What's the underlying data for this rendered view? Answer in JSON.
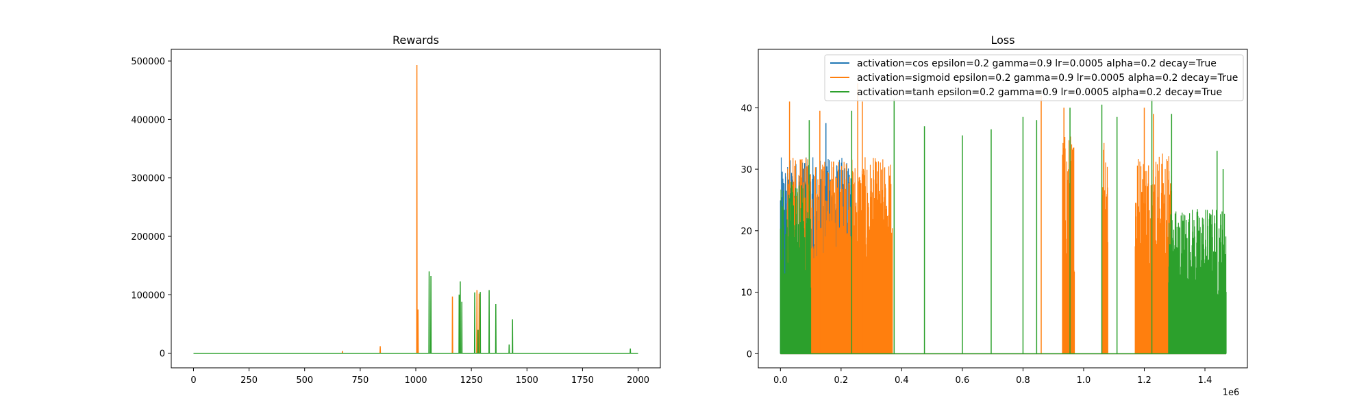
{
  "chart_data": [
    {
      "type": "line",
      "title": "Rewards",
      "xlabel": "",
      "ylabel": "",
      "xlim": [
        -100,
        2100
      ],
      "ylim": [
        -25000,
        520000
      ],
      "xticks": [
        0,
        250,
        500,
        750,
        1000,
        1250,
        1500,
        1750,
        2000
      ],
      "xtick_labels": [
        "0",
        "250",
        "500",
        "750",
        "1000",
        "1250",
        "1500",
        "1750",
        "2000"
      ],
      "yticks": [
        0,
        100000,
        200000,
        300000,
        400000,
        500000
      ],
      "ytick_labels": [
        "0",
        "100000",
        "200000",
        "300000",
        "400000",
        "500000"
      ],
      "grid": false,
      "series": [
        {
          "color": "#1f77b4",
          "baseline_x_range": [
            0,
            2000
          ],
          "baseline": 0,
          "spikes": []
        },
        {
          "color": "#ff7f0e",
          "baseline_x_range": [
            0,
            2000
          ],
          "baseline": 0,
          "spikes": [
            [
              670,
              4000
            ],
            [
              840,
              12000
            ],
            [
              1005,
              493000
            ],
            [
              1010,
              75000
            ],
            [
              1165,
              97000
            ],
            [
              1275,
              108000
            ],
            [
              1285,
              102000
            ]
          ]
        },
        {
          "color": "#2ca02c",
          "baseline_x_range": [
            0,
            2000
          ],
          "baseline": 0,
          "spikes": [
            [
              1060,
              140000
            ],
            [
              1068,
              132000
            ],
            [
              1195,
              100000
            ],
            [
              1200,
              123000
            ],
            [
              1207,
              88000
            ],
            [
              1265,
              104000
            ],
            [
              1280,
              40000
            ],
            [
              1290,
              105000
            ],
            [
              1330,
              108000
            ],
            [
              1360,
              84000
            ],
            [
              1420,
              15000
            ],
            [
              1435,
              58000
            ],
            [
              1965,
              8000
            ]
          ]
        }
      ]
    },
    {
      "type": "line",
      "title": "Loss",
      "xlabel": "",
      "ylabel": "",
      "x_offset_label": "1e6",
      "xlim": [
        -0.073,
        1.54
      ],
      "ylim": [
        -2.3,
        49.5
      ],
      "xticks": [
        0.0,
        0.2,
        0.4,
        0.6,
        0.8,
        1.0,
        1.2,
        1.4
      ],
      "xtick_labels": [
        "0.0",
        "0.2",
        "0.4",
        "0.6",
        "0.8",
        "1.0",
        "1.2",
        "1.4"
      ],
      "yticks": [
        0,
        10,
        20,
        30,
        40
      ],
      "ytick_labels": [
        "0",
        "10",
        "20",
        "30",
        "40"
      ],
      "grid": false,
      "legend": "top-right",
      "series": [
        {
          "name": "activation=cos epsilon=0.2 gamma=0.9 lr=0.0005 alpha=0.2 decay=True",
          "color": "#1f77b4",
          "blocks": [
            [
              0.0,
              0.24,
              0.5,
              32
            ]
          ],
          "spikes": [
            [
              0.002,
              19.5
            ],
            [
              0.08,
              31
            ],
            [
              0.15,
              37.5
            ],
            [
              0.2,
              25
            ],
            [
              0.21,
              21
            ]
          ]
        },
        {
          "name": "activation=sigmoid epsilon=0.2 gamma=0.9 lr=0.0005 alpha=0.2 decay=True",
          "color": "#ff7f0e",
          "blocks": [
            [
              0.02,
              0.37,
              1,
              32
            ],
            [
              0.93,
              0.97,
              1,
              36
            ],
            [
              1.06,
              1.08,
              1,
              38
            ],
            [
              1.17,
              1.29,
              1,
              33
            ]
          ],
          "spikes": [
            [
              0.03,
              41
            ],
            [
              0.13,
              39.5
            ],
            [
              0.255,
              44
            ],
            [
              0.27,
              41
            ],
            [
              0.86,
              42
            ],
            [
              0.935,
              40
            ],
            [
              1.2,
              40
            ],
            [
              1.23,
              39
            ]
          ]
        },
        {
          "name": "activation=tanh epsilon=0.2 gamma=0.9 lr=0.0005 alpha=0.2 decay=True",
          "color": "#2ca02c",
          "blocks": [
            [
              0.0,
              0.1,
              0,
              28
            ],
            [
              1.28,
              1.47,
              0,
              24
            ]
          ],
          "spikes": [
            [
              0.095,
              38
            ],
            [
              0.235,
              39.5
            ],
            [
              0.375,
              41.5
            ],
            [
              0.475,
              37
            ],
            [
              0.6,
              35.5
            ],
            [
              0.695,
              36.5
            ],
            [
              0.8,
              38.5
            ],
            [
              0.845,
              38
            ],
            [
              0.955,
              40
            ],
            [
              1.06,
              40.5
            ],
            [
              1.11,
              38.5
            ],
            [
              1.225,
              41.5
            ],
            [
              1.29,
              39
            ],
            [
              1.44,
              33
            ],
            [
              1.46,
              30
            ]
          ]
        }
      ]
    }
  ]
}
